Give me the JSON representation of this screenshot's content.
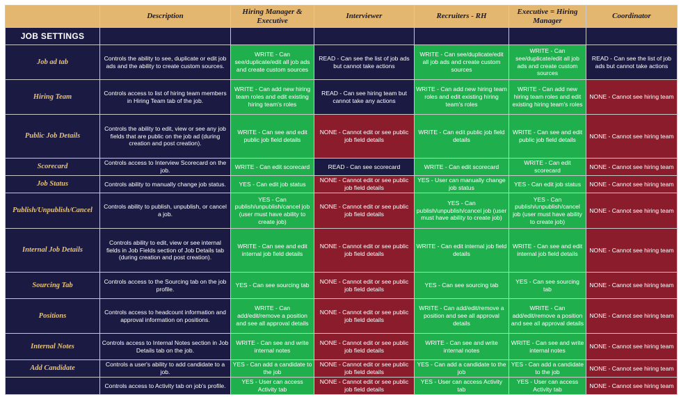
{
  "colors": {
    "header": "#e4b771",
    "navy": "#1b1a43",
    "green": "#1fb04d",
    "red": "#8b1c2c",
    "label": "#e6c27a"
  },
  "headers": [
    "",
    "Description",
    "Hiring Manager & Executive",
    "Interviewer",
    "Recruiters - RH",
    "Executive = Hiring Manager",
    "Coordinator"
  ],
  "section_title": "JOB SETTINGS",
  "rows": [
    {
      "label": "Job ad tab",
      "desc": "Controls the ability to see, duplicate or edit job ads and the ability to create custom sources.",
      "cells": [
        {
          "text": "WRITE - Can see/duplicate/edit all job ads and create custom sources",
          "color": "green"
        },
        {
          "text": "READ - Can see the list of job ads but cannot take actions",
          "color": "navy"
        },
        {
          "text": "WRITE - Can see/duplicate/edit all job ads and create custom sources",
          "color": "green"
        },
        {
          "text": "WRITE - Can see/duplicate/edit all job ads and create custom sources",
          "color": "green"
        },
        {
          "text": "READ - Can see the list of job ads but cannot take actions",
          "color": "navy"
        }
      ]
    },
    {
      "label": "Hiring Team",
      "desc": "Controls access to list of hiring team members in Hiring Team tab of the job.",
      "cells": [
        {
          "text": "WRITE - Can add new hiring team roles and edit existing hiring team's roles",
          "color": "green"
        },
        {
          "text": "READ - Can see hiring team but cannot take any actions",
          "color": "navy"
        },
        {
          "text": "WRITE - Can add new hiring team roles and edit existing hiring team's roles",
          "color": "green"
        },
        {
          "text": "WRITE - Can add new hiring team roles and edit existing hiring team's roles",
          "color": "green"
        },
        {
          "text": "NONE - Cannot see hiring team",
          "color": "red"
        }
      ]
    },
    {
      "label": "Public Job Details",
      "desc": "Controls the ability to edit, view or see any job fields that are public on the job ad (during creation and post creation).",
      "cells": [
        {
          "text": "WRITE - Can see and edit public job field details",
          "color": "green"
        },
        {
          "text": "NONE - Cannot edit or see public job field details",
          "color": "red"
        },
        {
          "text": "WRITE - Can edit public job field details",
          "color": "green"
        },
        {
          "text": "WRITE - Can see and edit public job field details",
          "color": "green"
        },
        {
          "text": "NONE - Cannot see hiring team",
          "color": "red"
        }
      ]
    },
    {
      "label": "Scorecard",
      "desc": "Controls access to Interview Scorecard on the job.",
      "cells": [
        {
          "text": "WRITE - Can edit scorecard",
          "color": "green"
        },
        {
          "text": "READ - Can see scorecard",
          "color": "navy"
        },
        {
          "text": "WRITE - Can edit scorecard",
          "color": "green"
        },
        {
          "text": "WRITE - Can edit scorecard",
          "color": "green"
        },
        {
          "text": "NONE - Cannot see hiring team",
          "color": "red"
        }
      ]
    },
    {
      "label": "Job Status",
      "desc": "Controls ability to manually change job status.",
      "cells": [
        {
          "text": "YES - Can edit job status",
          "color": "green"
        },
        {
          "text": "NONE - Cannot edit or see public job field details",
          "color": "red"
        },
        {
          "text": "YES - User can manually change job status",
          "color": "green"
        },
        {
          "text": "YES - Can edit job status",
          "color": "green"
        },
        {
          "text": "NONE - Cannot see hiring team",
          "color": "red"
        }
      ]
    },
    {
      "label": "Publish/Unpublish/Cancel",
      "desc": "Controls ability to publish, unpublish, or cancel a job.",
      "cells": [
        {
          "text": "YES - Can publish/unpublish/cancel job (user must have ability to create job)",
          "color": "green"
        },
        {
          "text": "NONE - Cannot edit or see public job field details",
          "color": "red"
        },
        {
          "text": "YES - Can publish/unpublish/cancel job (user must have ability to create job)",
          "color": "green"
        },
        {
          "text": "YES - Can publish/unpublish/cancel job (user must have ability to create job)",
          "color": "green"
        },
        {
          "text": "NONE - Cannot see hiring team",
          "color": "red"
        }
      ]
    },
    {
      "label": "Internal Job Details",
      "desc": "Controls ability to edit, view or see internal fields in Job Fields section of Job Details tab (during creation and post creation).",
      "cells": [
        {
          "text": "WRITE - Can see and edit internal job field details",
          "color": "green"
        },
        {
          "text": "NONE - Cannot edit or see public job field details",
          "color": "red"
        },
        {
          "text": "WRITE - Can edit internal job field details",
          "color": "green"
        },
        {
          "text": "WRITE - Can see and edit internal job field details",
          "color": "green"
        },
        {
          "text": "NONE - Cannot see hiring team",
          "color": "red"
        }
      ]
    },
    {
      "label": "Sourcing Tab",
      "desc": "Controls access to the Sourcing tab on the job profile.",
      "cells": [
        {
          "text": "YES - Can see sourcing tab",
          "color": "green"
        },
        {
          "text": "NONE - Cannot edit or see public job field details",
          "color": "red"
        },
        {
          "text": "YES - Can see sourcing tab",
          "color": "green"
        },
        {
          "text": "YES - Can see sourcing tab",
          "color": "green"
        },
        {
          "text": "NONE - Cannot see hiring team",
          "color": "red"
        }
      ]
    },
    {
      "label": "Positions",
      "desc": "Controls access to headcount information and approval information on positions.",
      "cells": [
        {
          "text": "WRITE - Can add/edit/remove a position and see all approval details",
          "color": "green"
        },
        {
          "text": "NONE - Cannot edit or see public job field details",
          "color": "red"
        },
        {
          "text": "WRITE - Can add/edit/remove a position and see all approval details",
          "color": "green"
        },
        {
          "text": "WRITE - Can add/edit/remove a position and see all approval details",
          "color": "green"
        },
        {
          "text": "NONE - Cannot see hiring team",
          "color": "red"
        }
      ]
    },
    {
      "label": "Internal Notes",
      "desc": "Controls access to Internal Notes section in Job Details tab on the job.",
      "cells": [
        {
          "text": "WRITE - Can see and write internal notes",
          "color": "green"
        },
        {
          "text": "NONE - Cannot edit or see public job field details",
          "color": "red"
        },
        {
          "text": "WRITE - Can see and write internal notes",
          "color": "green"
        },
        {
          "text": "WRITE - Can see and write internal notes",
          "color": "green"
        },
        {
          "text": "NONE - Cannot see hiring team",
          "color": "red"
        }
      ]
    },
    {
      "label": "Add Candidate",
      "desc": "Controls a user's ability to add candidate to a job.",
      "cells": [
        {
          "text": "YES - Can add a candidate to the job",
          "color": "green"
        },
        {
          "text": "NONE - Cannot edit or see public job field details",
          "color": "red"
        },
        {
          "text": "YES - Can add a candidate to the job",
          "color": "green"
        },
        {
          "text": "YES - Can add a candidate to the job",
          "color": "green"
        },
        {
          "text": "NONE - Cannot see hiring team",
          "color": "red"
        }
      ]
    },
    {
      "label": "",
      "desc": "Controls access to Activity tab on job's profile.",
      "cells": [
        {
          "text": "YES - User can access Activity tab",
          "color": "green"
        },
        {
          "text": "NONE - Cannot edit or see public job field details",
          "color": "red"
        },
        {
          "text": "YES - User can access Activity tab",
          "color": "green"
        },
        {
          "text": "YES - User can access Activity tab",
          "color": "green"
        },
        {
          "text": "NONE - Cannot see hiring team",
          "color": "red"
        }
      ]
    }
  ]
}
